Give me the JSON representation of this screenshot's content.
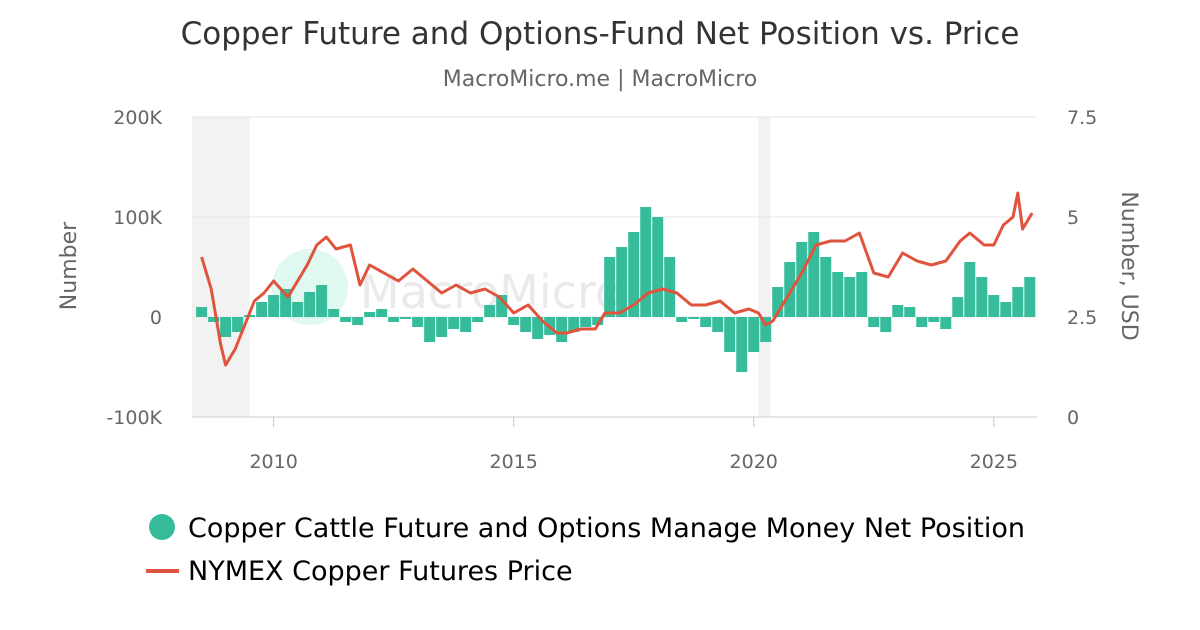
{
  "chart_data": {
    "type": "bar+line",
    "title": "Copper Future and Options-Fund Net Position vs. Price",
    "subtitle": "MacroMicro.me | MacroMicro",
    "watermark": "MacroMicro",
    "x_range": [
      2008.3,
      2025.9
    ],
    "x_ticks": [
      "2010",
      "2015",
      "2020",
      "2025"
    ],
    "y_left": {
      "label": "Number",
      "range": [
        -100000,
        200000
      ],
      "ticks": [
        "-100K",
        "0",
        "100K",
        "200K"
      ]
    },
    "y_right": {
      "label": "Number, USD",
      "range": [
        0,
        7.5
      ],
      "ticks": [
        "0",
        "2.5",
        "5",
        "7.5"
      ]
    },
    "recessions": [
      [
        2008.3,
        2009.5
      ],
      [
        2020.1,
        2020.35
      ]
    ],
    "series": [
      {
        "name": "Copper Cattle Future and Options Manage Money Net Position",
        "kind": "bar",
        "axis": "left",
        "color": "#36bc9b",
        "x": [
          2008.5,
          2008.75,
          2009.0,
          2009.25,
          2009.5,
          2009.75,
          2010.0,
          2010.25,
          2010.5,
          2010.75,
          2011.0,
          2011.25,
          2011.5,
          2011.75,
          2012.0,
          2012.25,
          2012.5,
          2012.75,
          2013.0,
          2013.25,
          2013.5,
          2013.75,
          2014.0,
          2014.25,
          2014.5,
          2014.75,
          2015.0,
          2015.25,
          2015.5,
          2015.75,
          2016.0,
          2016.25,
          2016.5,
          2016.75,
          2017.0,
          2017.25,
          2017.5,
          2017.75,
          2018.0,
          2018.25,
          2018.5,
          2018.75,
          2019.0,
          2019.25,
          2019.5,
          2019.75,
          2020.0,
          2020.25,
          2020.5,
          2020.75,
          2021.0,
          2021.25,
          2021.5,
          2021.75,
          2022.0,
          2022.25,
          2022.5,
          2022.75,
          2023.0,
          2023.25,
          2023.5,
          2023.75,
          2024.0,
          2024.25,
          2024.5,
          2024.75,
          2025.0,
          2025.25,
          2025.5,
          2025.75
        ],
        "values": [
          10000,
          -5000,
          -20000,
          -15000,
          2000,
          15000,
          22000,
          28000,
          15000,
          25000,
          32000,
          8000,
          -5000,
          -8000,
          5000,
          8000,
          -5000,
          -2000,
          -10000,
          -25000,
          -20000,
          -12000,
          -15000,
          -5000,
          12000,
          22000,
          -8000,
          -15000,
          -22000,
          -18000,
          -25000,
          -15000,
          -10000,
          -8000,
          60000,
          70000,
          85000,
          110000,
          100000,
          60000,
          -5000,
          -2000,
          -10000,
          -15000,
          -35000,
          -55000,
          -35000,
          -25000,
          30000,
          55000,
          75000,
          85000,
          60000,
          45000,
          40000,
          45000,
          -10000,
          -15000,
          12000,
          10000,
          -10000,
          -5000,
          -12000,
          20000,
          55000,
          40000,
          22000,
          15000,
          30000,
          40000
        ]
      },
      {
        "name": "NYMEX Copper Futures Price",
        "kind": "line",
        "axis": "right",
        "color": "#e0533d",
        "x": [
          2008.5,
          2008.7,
          2008.9,
          2009.0,
          2009.2,
          2009.4,
          2009.6,
          2009.8,
          2010.0,
          2010.3,
          2010.5,
          2010.7,
          2010.9,
          2011.1,
          2011.3,
          2011.6,
          2011.8,
          2012.0,
          2012.3,
          2012.6,
          2012.9,
          2013.2,
          2013.5,
          2013.8,
          2014.1,
          2014.4,
          2014.7,
          2015.0,
          2015.3,
          2015.6,
          2015.9,
          2016.1,
          2016.4,
          2016.7,
          2016.9,
          2017.2,
          2017.5,
          2017.8,
          2018.1,
          2018.4,
          2018.7,
          2019.0,
          2019.3,
          2019.6,
          2019.9,
          2020.1,
          2020.25,
          2020.4,
          2020.7,
          2021.0,
          2021.3,
          2021.6,
          2021.9,
          2022.2,
          2022.5,
          2022.8,
          2023.1,
          2023.4,
          2023.7,
          2024.0,
          2024.3,
          2024.5,
          2024.8,
          2025.0,
          2025.2,
          2025.4,
          2025.5,
          2025.6,
          2025.8
        ],
        "values": [
          4.0,
          3.2,
          1.8,
          1.3,
          1.7,
          2.3,
          2.9,
          3.1,
          3.4,
          3.0,
          3.4,
          3.8,
          4.3,
          4.5,
          4.2,
          4.3,
          3.3,
          3.8,
          3.6,
          3.4,
          3.7,
          3.4,
          3.1,
          3.3,
          3.1,
          3.2,
          3.0,
          2.6,
          2.8,
          2.4,
          2.1,
          2.1,
          2.2,
          2.2,
          2.6,
          2.6,
          2.8,
          3.1,
          3.2,
          3.1,
          2.8,
          2.8,
          2.9,
          2.6,
          2.7,
          2.6,
          2.3,
          2.4,
          3.0,
          3.6,
          4.3,
          4.4,
          4.4,
          4.6,
          3.6,
          3.5,
          4.1,
          3.9,
          3.8,
          3.9,
          4.4,
          4.6,
          4.3,
          4.3,
          4.8,
          5.0,
          5.6,
          4.7,
          5.1
        ]
      }
    ],
    "legend": {
      "placement": "bottom-left"
    }
  }
}
